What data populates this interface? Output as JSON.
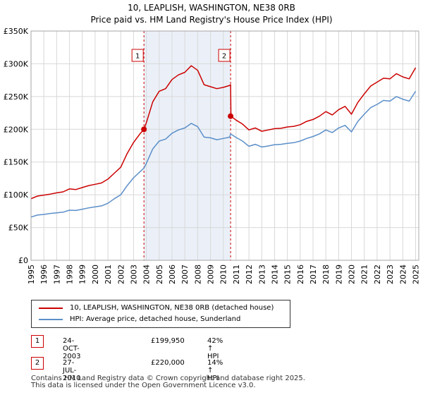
{
  "title_line1": "10, LEAPLISH, WASHINGTON, NE38 0RB",
  "title_line2": "Price paid vs. HM Land Registry's House Price Index (HPI)",
  "colors": {
    "property": "#cc0000",
    "hpi": "#5b8fc9",
    "shade": "#dde6f4",
    "grid": "#d8d8d8",
    "marker_border": "#cc0000"
  },
  "chart_data": {
    "type": "line",
    "title": "Price paid vs. HM Land Registry's House Price Index (HPI)",
    "xlabel": "",
    "ylabel": "",
    "xlim": [
      1995.0,
      2025.25
    ],
    "ylim": [
      0,
      350000
    ],
    "grid": true,
    "y_ticks": [
      0,
      50000,
      100000,
      150000,
      200000,
      250000,
      300000,
      350000
    ],
    "y_tick_labels": [
      "£0",
      "£50K",
      "£100K",
      "£150K",
      "£200K",
      "£250K",
      "£300K",
      "£350K"
    ],
    "x_ticks": [
      1995,
      1996,
      1997,
      1998,
      1999,
      2000,
      2001,
      2002,
      2003,
      2004,
      2005,
      2006,
      2007,
      2008,
      2009,
      2010,
      2011,
      2012,
      2013,
      2014,
      2015,
      2016,
      2017,
      2018,
      2019,
      2020,
      2021,
      2022,
      2023,
      2024,
      2025
    ],
    "x_tick_labels": [
      "1995",
      "1996",
      "1997",
      "1998",
      "1999",
      "2000",
      "2001",
      "2002",
      "2003",
      "2004",
      "2005",
      "2006",
      "2007",
      "2008",
      "2009",
      "2010",
      "2011",
      "2012",
      "2013",
      "2014",
      "2015",
      "2016",
      "2017",
      "2018",
      "2019",
      "2020",
      "2021",
      "2022",
      "2023",
      "2024",
      "2025"
    ],
    "shaded_range": [
      2003.81,
      2010.57
    ],
    "series": [
      {
        "name": "10, LEAPLISH, WASHINGTON, NE38 0RB (detached house)",
        "color": "#cc0000",
        "x": [
          1995.0,
          1995.5,
          1996.0,
          1996.5,
          1997.0,
          1997.5,
          1998.0,
          1998.5,
          1999.0,
          1999.5,
          2000.0,
          2000.5,
          2001.0,
          2001.5,
          2002.0,
          2002.5,
          2003.0,
          2003.5,
          2003.81,
          2004.0,
          2004.5,
          2005.0,
          2005.5,
          2006.0,
          2006.5,
          2007.0,
          2007.5,
          2008.0,
          2008.5,
          2009.0,
          2009.5,
          2010.0,
          2010.5,
          2010.57,
          2010.6,
          2011.0,
          2011.5,
          2012.0,
          2012.5,
          2013.0,
          2013.5,
          2014.0,
          2014.5,
          2015.0,
          2015.5,
          2016.0,
          2016.5,
          2017.0,
          2017.5,
          2018.0,
          2018.5,
          2019.0,
          2019.5,
          2020.0,
          2020.5,
          2021.0,
          2021.5,
          2022.0,
          2022.5,
          2023.0,
          2023.5,
          2024.0,
          2024.5,
          2025.0
        ],
        "values": [
          94000,
          98000,
          99500,
          101000,
          103000,
          104500,
          109000,
          108000,
          111000,
          114000,
          116000,
          118000,
          124000,
          133000,
          142000,
          163000,
          180000,
          193000,
          199950,
          210000,
          242000,
          258000,
          262000,
          276000,
          283000,
          287000,
          297000,
          290000,
          268000,
          265000,
          262000,
          264000,
          267000,
          268000,
          220000,
          214000,
          208000,
          199000,
          202000,
          197000,
          199000,
          201000,
          201500,
          203500,
          204500,
          207000,
          212000,
          215000,
          220000,
          227000,
          222000,
          230000,
          235000,
          223000,
          241000,
          254000,
          266000,
          272000,
          278000,
          277000,
          285000,
          280000,
          277000,
          294000
        ]
      },
      {
        "name": "HPI: Average price, detached house, Sunderland",
        "color": "#5b8fc9",
        "x": [
          1995.0,
          1995.5,
          1996.0,
          1996.5,
          1997.0,
          1997.5,
          1998.0,
          1998.5,
          1999.0,
          1999.5,
          2000.0,
          2000.5,
          2001.0,
          2001.5,
          2002.0,
          2002.5,
          2003.0,
          2003.5,
          2003.81,
          2004.0,
          2004.5,
          2005.0,
          2005.5,
          2006.0,
          2006.5,
          2007.0,
          2007.5,
          2008.0,
          2008.5,
          2009.0,
          2009.5,
          2010.0,
          2010.5,
          2010.57,
          2011.0,
          2011.5,
          2012.0,
          2012.5,
          2013.0,
          2013.5,
          2014.0,
          2014.5,
          2015.0,
          2015.5,
          2016.0,
          2016.5,
          2017.0,
          2017.5,
          2018.0,
          2018.5,
          2019.0,
          2019.5,
          2020.0,
          2020.5,
          2021.0,
          2021.5,
          2022.0,
          2022.5,
          2023.0,
          2023.5,
          2024.0,
          2024.5,
          2025.0
        ],
        "values": [
          66000,
          69000,
          70000,
          71500,
          72500,
          73500,
          76500,
          76000,
          78000,
          80000,
          81500,
          83000,
          87000,
          94000,
          100000,
          114000,
          126000,
          135000,
          140700,
          148000,
          170000,
          182000,
          185000,
          194000,
          199000,
          202000,
          209000,
          204000,
          188000,
          187000,
          184000,
          186000,
          188000,
          192900,
          187500,
          182000,
          174000,
          177000,
          173000,
          174500,
          176500,
          177000,
          178500,
          179500,
          182000,
          186000,
          189000,
          193000,
          199000,
          195000,
          202000,
          206000,
          196000,
          212000,
          223000,
          233000,
          238000,
          244000,
          243000,
          250000,
          246000,
          243000,
          258000
        ]
      }
    ],
    "sales": [
      {
        "label": "1",
        "x": 2003.81,
        "value": 199950
      },
      {
        "label": "2",
        "x": 2010.57,
        "value": 220000
      }
    ]
  },
  "legend": {
    "property_label": "10, LEAPLISH, WASHINGTON, NE38 0RB (detached house)",
    "hpi_label": "HPI: Average price, detached house, Sunderland"
  },
  "transactions": [
    {
      "num": "1",
      "date": "24-OCT-2003",
      "price": "£199,950",
      "hpi": "42% ↑ HPI"
    },
    {
      "num": "2",
      "date": "27-JUL-2010",
      "price": "£220,000",
      "hpi": "14% ↑ HPI"
    }
  ],
  "footer": {
    "line1": "Contains HM Land Registry data © Crown copyright and database right 2025.",
    "line2": "This data is licensed under the Open Government Licence v3.0."
  }
}
